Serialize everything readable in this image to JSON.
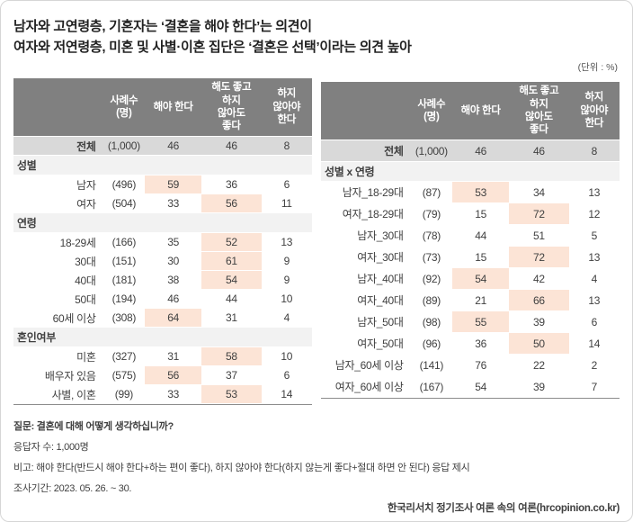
{
  "title": {
    "line1": "남자와 고연령층, 기혼자는 ‘결혼을 해야 한다’는 의견이",
    "line2": "여자와 저연령층, 미혼 및 사별·이혼 집단은 ‘결혼은 선택’이라는 의견 높아"
  },
  "unit_label": "(단위 : %)",
  "colors": {
    "header_bg": "#808080",
    "header_text": "#ffffff",
    "total_row_bg": "#d9d9d9",
    "section_row_bg": "#f2f2f2",
    "highlight_bg": "#fce4d6",
    "table_text": "#404040",
    "table_bottom_border": "#8c8c8c"
  },
  "chart_data": [
    {
      "type": "table",
      "columns": [
        "사례수\n(명)",
        "해야 한다",
        "해도 좋고\n하지\n않아도\n좋다",
        "하지\n않아야\n한다"
      ],
      "total_row": {
        "label": "전체",
        "n": "(1,000)",
        "values": [
          46,
          46,
          8
        ]
      },
      "sections": [
        {
          "name": "성별",
          "rows": [
            {
              "label": "남자",
              "n": "(496)",
              "values": [
                59,
                36,
                6
              ],
              "highlight": 0
            },
            {
              "label": "여자",
              "n": "(504)",
              "values": [
                33,
                56,
                11
              ],
              "highlight": 1
            }
          ]
        },
        {
          "name": "연령",
          "rows": [
            {
              "label": "18-29세",
              "n": "(166)",
              "values": [
                35,
                52,
                13
              ],
              "highlight": 1
            },
            {
              "label": "30대",
              "n": "(151)",
              "values": [
                30,
                61,
                9
              ],
              "highlight": 1
            },
            {
              "label": "40대",
              "n": "(181)",
              "values": [
                38,
                54,
                9
              ],
              "highlight": 1
            },
            {
              "label": "50대",
              "n": "(194)",
              "values": [
                46,
                44,
                10
              ],
              "highlight": null
            },
            {
              "label": "60세 이상",
              "n": "(308)",
              "values": [
                64,
                31,
                4
              ],
              "highlight": 0
            }
          ]
        },
        {
          "name": "혼인여부",
          "rows": [
            {
              "label": "미혼",
              "n": "(327)",
              "values": [
                31,
                58,
                10
              ],
              "highlight": 1
            },
            {
              "label": "배우자 있음",
              "n": "(575)",
              "values": [
                56,
                37,
                6
              ],
              "highlight": 0
            },
            {
              "label": "사별, 이혼",
              "n": "(99)",
              "values": [
                33,
                53,
                14
              ],
              "highlight": 1
            }
          ]
        }
      ]
    },
    {
      "type": "table",
      "columns": [
        "사례수\n(명)",
        "해야 한다",
        "해도 좋고\n하지\n않아도\n좋다",
        "하지\n않아야\n한다"
      ],
      "total_row": {
        "label": "전체",
        "n": "(1,000)",
        "values": [
          46,
          46,
          8
        ]
      },
      "sections": [
        {
          "name": "성별 x 연령",
          "rows": [
            {
              "label": "남자_18-29대",
              "n": "(87)",
              "values": [
                53,
                34,
                13
              ],
              "highlight": 0
            },
            {
              "label": "여자_18-29대",
              "n": "(79)",
              "values": [
                15,
                72,
                12
              ],
              "highlight": 1
            },
            {
              "label": "남자_30대",
              "n": "(78)",
              "values": [
                44,
                51,
                5
              ],
              "highlight": null
            },
            {
              "label": "여자_30대",
              "n": "(73)",
              "values": [
                15,
                72,
                13
              ],
              "highlight": 1
            },
            {
              "label": "남자_40대",
              "n": "(92)",
              "values": [
                54,
                42,
                4
              ],
              "highlight": 0
            },
            {
              "label": "여자_40대",
              "n": "(89)",
              "values": [
                21,
                66,
                13
              ],
              "highlight": 1
            },
            {
              "label": "남자_50대",
              "n": "(98)",
              "values": [
                55,
                39,
                6
              ],
              "highlight": 0
            },
            {
              "label": "여자_50대",
              "n": "(96)",
              "values": [
                36,
                50,
                14
              ],
              "highlight": 1
            },
            {
              "label": "남자_60세 이상",
              "n": "(141)",
              "values": [
                76,
                22,
                2
              ],
              "highlight": null
            },
            {
              "label": "여자_60세 이상",
              "n": "(167)",
              "values": [
                54,
                39,
                7
              ],
              "highlight": null
            }
          ]
        }
      ]
    }
  ],
  "footnotes": {
    "question": "질문: 결혼에 대해 어떻게 생각하십니까?",
    "respondents": "응답자 수: 1,000명",
    "remark": "비고: 해야 한다(반드시 해야 한다+하는 편이 좋다), 하지 않아야 한다(하지 않는게 좋다+절대 하면 안 된다) 응답 제시",
    "period": "조사기간: 2023. 05. 26. ~ 30."
  },
  "source": "한국리서치 정기조사 여론 속의 여론(hrcopinion.co.kr)"
}
